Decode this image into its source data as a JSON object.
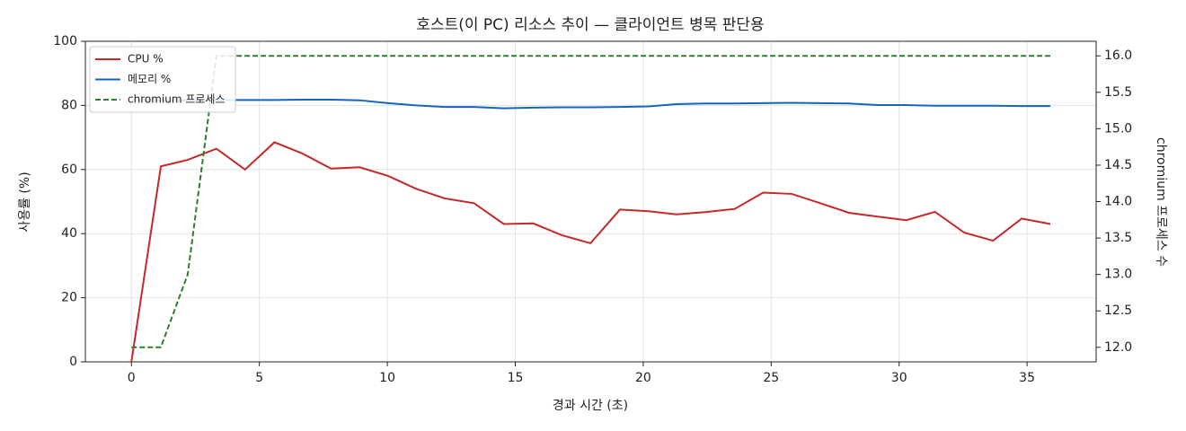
{
  "chart_data": {
    "type": "line",
    "title": "호스트(이 PC) 리소스 추이 — 클라이언트 병목 판단용",
    "xlabel": "경과 시간 (초)",
    "ylabel": "사용률 (%)",
    "y2label": "chromium 프로세스 수",
    "x": [
      0,
      1.15,
      2.2,
      3.32,
      4.44,
      5.59,
      6.68,
      7.8,
      8.92,
      10.03,
      11.12,
      12.24,
      13.39,
      14.55,
      15.7,
      16.82,
      17.94,
      19.09,
      20.21,
      21.29,
      22.41,
      23.57,
      24.69,
      25.8,
      26.92,
      28.04,
      29.16,
      30.28,
      31.4,
      32.55,
      33.67,
      34.79,
      35.91
    ],
    "series": [
      {
        "name": "CPU %",
        "color": "#c62828",
        "dash": false,
        "values": [
          0,
          61,
          63,
          66.5,
          60,
          68.5,
          65,
          60.3,
          60.7,
          58,
          54,
          51,
          49.5,
          43,
          43.2,
          39.5,
          37,
          47.5,
          47,
          46,
          46.7,
          47.7,
          52.8,
          52.4,
          49.5,
          46.5,
          45.3,
          44.2,
          46.8,
          40.3,
          37.8,
          44.7,
          43
        ]
      },
      {
        "name": "메모리 %",
        "color": "#1565c0",
        "dash": false,
        "values": [
          81.5,
          81.5,
          81.6,
          81.7,
          81.7,
          81.7,
          81.8,
          81.8,
          81.6,
          80.7,
          80,
          79.5,
          79.5,
          79.1,
          79.3,
          79.4,
          79.4,
          79.5,
          79.7,
          80.4,
          80.6,
          80.6,
          80.7,
          80.8,
          80.7,
          80.6,
          80.1,
          80.1,
          79.9,
          79.9,
          79.9,
          79.8,
          79.8
        ]
      },
      {
        "name": "chromium 프로세스",
        "color": "#2e7d32",
        "dash": true,
        "axis": "y2",
        "values": [
          12,
          12,
          13,
          16,
          16,
          16,
          16,
          16,
          16,
          16,
          16,
          16,
          16,
          16,
          16,
          16,
          16,
          16,
          16,
          16,
          16,
          16,
          16,
          16,
          16,
          16,
          16,
          16,
          16,
          16,
          16,
          16,
          16
        ]
      }
    ],
    "xlim": [
      -1.8,
      37.7
    ],
    "xticks": [
      0,
      5,
      10,
      15,
      20,
      25,
      30,
      35
    ],
    "ylim": [
      0,
      100
    ],
    "yticks": [
      0,
      20,
      40,
      60,
      80,
      100
    ],
    "y2lim": [
      11.8,
      16.2
    ],
    "y2ticks": [
      {
        "value": 12,
        "label": "12.0"
      },
      12.5,
      {
        "value": 13,
        "label": "13.0"
      },
      13.5,
      {
        "value": 14,
        "label": "14.0"
      },
      14.5,
      {
        "value": 15,
        "label": "15.0"
      },
      15.5,
      {
        "value": 16,
        "label": "16.0"
      }
    ],
    "grid": true,
    "legend": "upper-left"
  }
}
